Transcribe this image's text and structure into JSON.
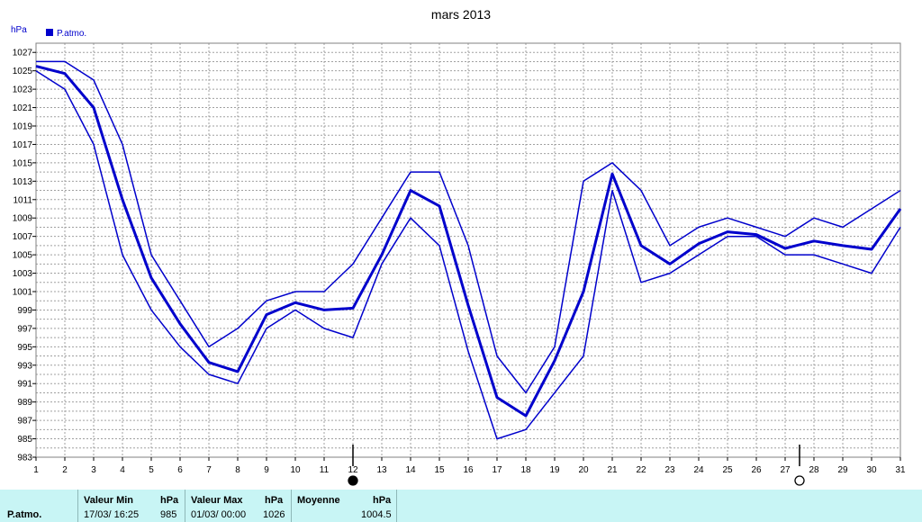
{
  "chart_data": {
    "type": "line",
    "title": "mars 2013",
    "ylabel": "hPa",
    "legend": {
      "label": "P.atmo.",
      "placement": "top-left",
      "color": "#0000cc"
    },
    "x": [
      1,
      2,
      3,
      4,
      5,
      6,
      7,
      8,
      9,
      10,
      11,
      12,
      13,
      14,
      15,
      16,
      17,
      18,
      19,
      20,
      21,
      22,
      23,
      24,
      25,
      26,
      27,
      28,
      29,
      30,
      31
    ],
    "x_tick_labels": [
      "1",
      "2",
      "3",
      "4",
      "5",
      "6",
      "7",
      "8",
      "9",
      "10",
      "11",
      "12",
      "13",
      "14",
      "15",
      "16",
      "17",
      "18",
      "19",
      "20",
      "21",
      "22",
      "23",
      "24",
      "25",
      "26",
      "27",
      "28",
      "29",
      "30",
      "31"
    ],
    "y_tick_labels": [
      "983",
      "985",
      "987",
      "989",
      "991",
      "993",
      "995",
      "997",
      "999",
      "1001",
      "1003",
      "1005",
      "1007",
      "1009",
      "1011",
      "1013",
      "1015",
      "1017",
      "1019",
      "1021",
      "1023",
      "1025",
      "1027"
    ],
    "xlim": [
      1,
      31
    ],
    "ylim": [
      983,
      1028
    ],
    "grid": true,
    "moon_markers": [
      {
        "day": 12,
        "phase": "new"
      },
      {
        "day": 27.5,
        "phase": "full"
      }
    ],
    "series": [
      {
        "role": "max",
        "values": [
          1026,
          1026,
          1024,
          1017,
          1005,
          1000,
          995,
          997,
          1000,
          1001,
          1001,
          1004,
          1009,
          1014,
          1014,
          1006,
          994,
          990,
          995,
          1013,
          1015,
          1012,
          1006,
          1008,
          1009,
          1008,
          1007,
          1009,
          1008,
          1010,
          1012
        ]
      },
      {
        "role": "mean",
        "values": [
          1025.5,
          1024.7,
          1021,
          1011,
          1002.5,
          997.5,
          993.3,
          992.3,
          998.5,
          999.8,
          999,
          999.2,
          1005,
          1012,
          1010.3,
          999.5,
          989.5,
          987.5,
          993.5,
          1001,
          1013.8,
          1006,
          1004,
          1006.2,
          1007.5,
          1007.2,
          1005.7,
          1006.5,
          1006,
          1005.6,
          1010
        ]
      },
      {
        "role": "min",
        "values": [
          1025,
          1023,
          1017,
          1005,
          999,
          995,
          992,
          991,
          997,
          999,
          997,
          996,
          1004,
          1009,
          1006,
          994.5,
          985,
          986,
          990,
          994,
          1012,
          1002,
          1003,
          1005,
          1007,
          1007,
          1005,
          1005,
          1004,
          1003,
          1008
        ]
      }
    ]
  },
  "stats_table": {
    "row_label": "P.atmo.",
    "min_label": "Valeur Min",
    "min_unit": "hPa",
    "min_date": "17/03/  16:25",
    "min_value": "985",
    "max_label": "Valeur Max",
    "max_unit": "hPa",
    "max_date": "01/03/  00:00",
    "max_value": "1026",
    "mean_label": "Moyenne",
    "mean_unit": "hPa",
    "mean_value": "1004.5"
  }
}
